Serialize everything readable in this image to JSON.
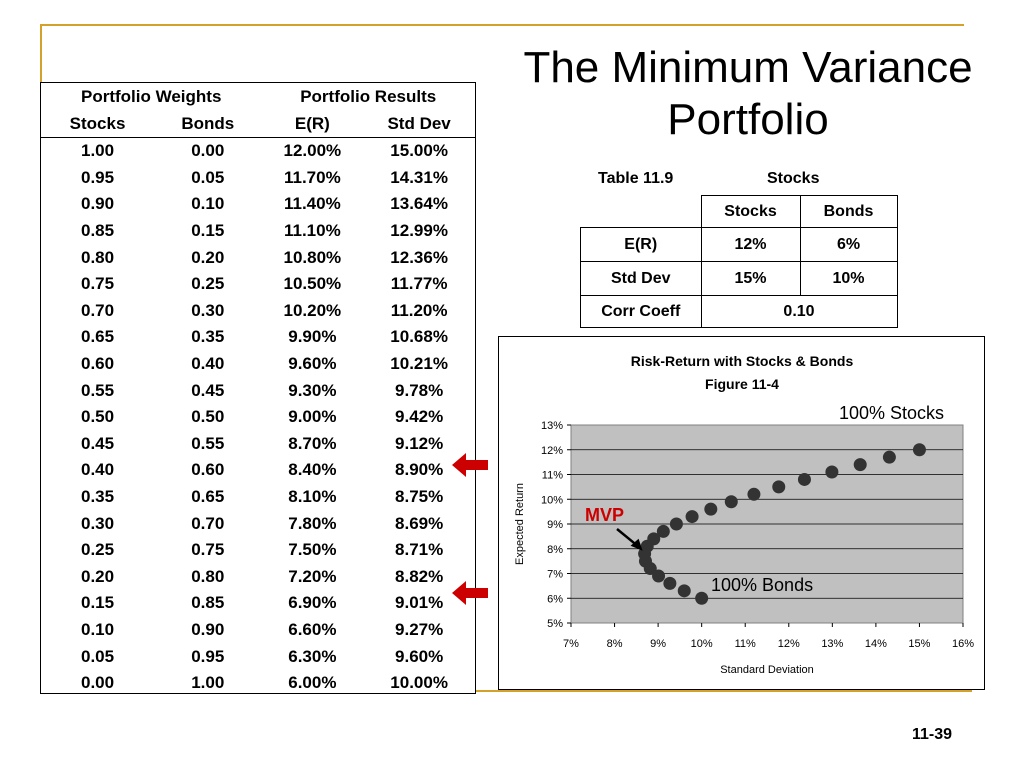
{
  "slide": {
    "title_line1": "The Minimum Variance",
    "title_line2": "Portfolio",
    "page_number": "11-39"
  },
  "weights_table": {
    "group_headers": [
      "Portfolio Weights",
      "Portfolio Results"
    ],
    "columns": [
      "Stocks",
      "Bonds",
      "E(R)",
      "Std Dev"
    ],
    "rows": [
      [
        "1.00",
        "0.00",
        "12.00%",
        "15.00%"
      ],
      [
        "0.95",
        "0.05",
        "11.70%",
        "14.31%"
      ],
      [
        "0.90",
        "0.10",
        "11.40%",
        "13.64%"
      ],
      [
        "0.85",
        "0.15",
        "11.10%",
        "12.99%"
      ],
      [
        "0.80",
        "0.20",
        "10.80%",
        "12.36%"
      ],
      [
        "0.75",
        "0.25",
        "10.50%",
        "11.77%"
      ],
      [
        "0.70",
        "0.30",
        "10.20%",
        "11.20%"
      ],
      [
        "0.65",
        "0.35",
        "9.90%",
        "10.68%"
      ],
      [
        "0.60",
        "0.40",
        "9.60%",
        "10.21%"
      ],
      [
        "0.55",
        "0.45",
        "9.30%",
        "9.78%"
      ],
      [
        "0.50",
        "0.50",
        "9.00%",
        "9.42%"
      ],
      [
        "0.45",
        "0.55",
        "8.70%",
        "9.12%"
      ],
      [
        "0.40",
        "0.60",
        "8.40%",
        "8.90%"
      ],
      [
        "0.35",
        "0.65",
        "8.10%",
        "8.75%"
      ],
      [
        "0.30",
        "0.70",
        "7.80%",
        "8.69%"
      ],
      [
        "0.25",
        "0.75",
        "7.50%",
        "8.71%"
      ],
      [
        "0.20",
        "0.80",
        "7.20%",
        "8.82%"
      ],
      [
        "0.15",
        "0.85",
        "6.90%",
        "9.01%"
      ],
      [
        "0.10",
        "0.90",
        "6.60%",
        "9.27%"
      ],
      [
        "0.05",
        "0.95",
        "6.30%",
        "9.60%"
      ],
      [
        "0.00",
        "1.00",
        "6.00%",
        "10.00%"
      ]
    ]
  },
  "table_11_9": {
    "caption": "Table 11.9",
    "caption_right": "Stocks",
    "col_headers": [
      "Stocks",
      "Bonds"
    ],
    "rows": [
      {
        "label": "E(R)",
        "stocks": "12%",
        "bonds": "6%"
      },
      {
        "label": "Std Dev",
        "stocks": "15%",
        "bonds": "10%"
      }
    ],
    "corr_label": "Corr Coeff",
    "corr_value": "0.10"
  },
  "arrows": {
    "color": "#cc0000"
  },
  "chart_data": {
    "type": "scatter",
    "title": "Risk-Return with Stocks & Bonds",
    "subtitle": "Figure 11-4",
    "xlabel": "Standard Deviation",
    "ylabel": "Expected Return",
    "xlim": [
      7,
      16
    ],
    "ylim": [
      5,
      13
    ],
    "x_ticks": [
      "7%",
      "8%",
      "9%",
      "10%",
      "11%",
      "12%",
      "13%",
      "14%",
      "15%",
      "16%"
    ],
    "y_ticks": [
      "5%",
      "6%",
      "7%",
      "8%",
      "9%",
      "10%",
      "11%",
      "12%",
      "13%"
    ],
    "grid": true,
    "plot_background": "#c0c0c0",
    "marker_color": "#333333",
    "series": [
      {
        "x": [
          15.0,
          14.31,
          13.64,
          12.99,
          12.36,
          11.77,
          11.2,
          10.68,
          10.21,
          9.78,
          9.42,
          9.12,
          8.9,
          8.75,
          8.69,
          8.71,
          8.82,
          9.01,
          9.27,
          9.6,
          10.0
        ],
        "y": [
          12.0,
          11.7,
          11.4,
          11.1,
          10.8,
          10.5,
          10.2,
          9.9,
          9.6,
          9.3,
          9.0,
          8.7,
          8.4,
          8.1,
          7.8,
          7.5,
          7.2,
          6.9,
          6.6,
          6.3,
          6.0
        ]
      }
    ],
    "annotations": {
      "stocks_label": "100% Stocks",
      "bonds_label": "100% Bonds",
      "mvp_label": "MVP",
      "mvp_color": "#cc0000"
    }
  }
}
